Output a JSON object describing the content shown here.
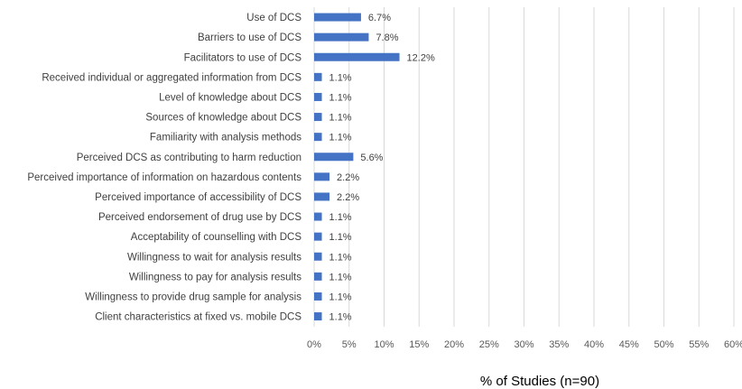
{
  "chart_data": {
    "type": "bar",
    "orientation": "horizontal",
    "categories": [
      "Use of DCS",
      "Barriers to use of DCS",
      "Facilitators to use of DCS",
      "Received individual or aggregated information from DCS",
      "Level of knowledge about DCS",
      "Sources of knowledge about DCS",
      "Familiarity with analysis methods",
      "Perceived DCS as contributing to harm reduction",
      "Perceived importance of information on hazardous contents",
      "Perceived importance of accessibility of DCS",
      "Perceived endorsement of drug use by DCS",
      "Acceptability of counselling with DCS",
      "Willingness to wait for analysis results",
      "Willingness to pay for analysis results",
      "Willingness to provide drug sample for analysis",
      "Client characteristics at fixed vs. mobile DCS"
    ],
    "values": [
      6.7,
      7.8,
      12.2,
      1.1,
      1.1,
      1.1,
      1.1,
      5.6,
      2.2,
      2.2,
      1.1,
      1.1,
      1.1,
      1.1,
      1.1,
      1.1
    ],
    "data_labels": [
      "6.7%",
      "7.8%",
      "12.2%",
      "1.1%",
      "1.1%",
      "1.1%",
      "1.1%",
      "5.6%",
      "2.2%",
      "2.2%",
      "1.1%",
      "1.1%",
      "1.1%",
      "1.1%",
      "1.1%",
      "1.1%"
    ],
    "x_ticks": [
      "0%",
      "5%",
      "10%",
      "15%",
      "20%",
      "25%",
      "30%",
      "35%",
      "40%",
      "45%",
      "50%",
      "55%",
      "60%"
    ],
    "xlim": [
      0,
      60
    ],
    "xlabel": "% of Studies (n=90)",
    "ylabel": "",
    "title": "",
    "grid": true,
    "bar_color": "#4472C4",
    "grid_color": "#D9D9D9",
    "legend": "none"
  }
}
